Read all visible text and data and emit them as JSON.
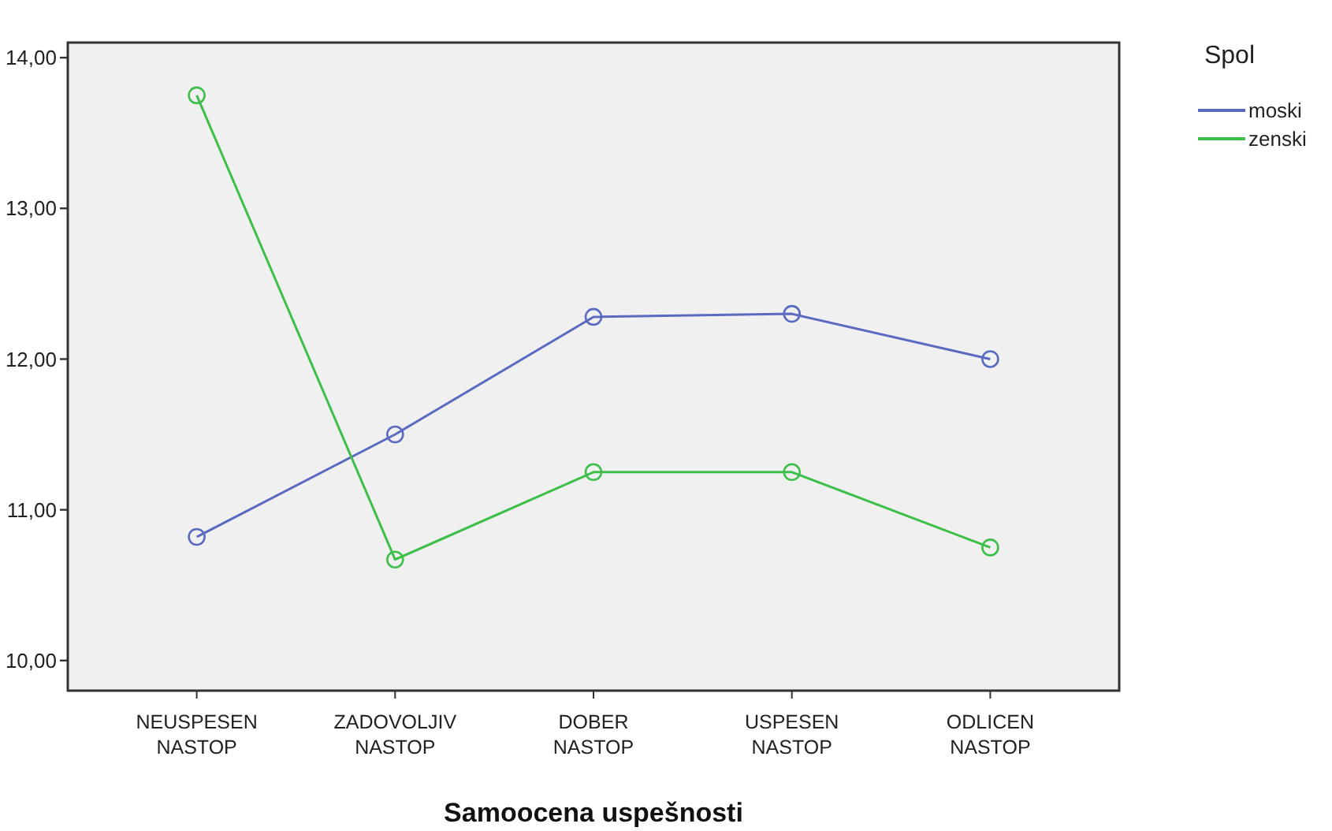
{
  "chart_data": {
    "type": "line",
    "xlabel": "Samoocena uspešnosti",
    "legend_title": "Spol",
    "categories": [
      "NEUSPESEN NASTOP",
      "ZADOVOLJIV NASTOP",
      "DOBER NASTOP",
      "USPESEN NASTOP",
      "ODLICEN NASTOP"
    ],
    "series": [
      {
        "name": "moski",
        "color": "#5a6ac0",
        "values": [
          10.82,
          11.5,
          12.28,
          12.3,
          12.0
        ]
      },
      {
        "name": "zenski",
        "color": "#3dbf4a",
        "values": [
          13.75,
          10.67,
          11.25,
          11.25,
          10.75
        ]
      }
    ],
    "ylim": [
      9.8,
      14.1
    ],
    "yticks": [
      {
        "value": 10,
        "label": "10,00"
      },
      {
        "value": 11,
        "label": "11,00"
      },
      {
        "value": 12,
        "label": "12,00"
      },
      {
        "value": 13,
        "label": "13,00"
      },
      {
        "value": 14,
        "label": "14,00"
      }
    ],
    "grid": false,
    "legend": "top right",
    "marker": "circle",
    "line_style": "solid"
  }
}
